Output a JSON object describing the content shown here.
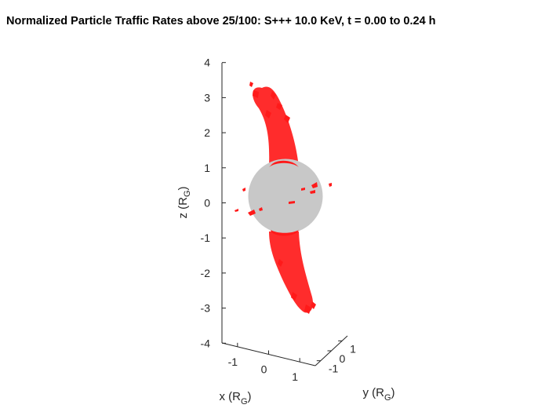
{
  "chart_data": {
    "type": "3d-surface",
    "title": "Normalized Particle Traffic Rates above 25/100: S+++ 10.0 KeV, t = 0.00 to 0.24 h",
    "xlabel": {
      "text": "x (R",
      "sub": "G",
      "close": ")"
    },
    "ylabel": {
      "text": "y (R",
      "sub": "G",
      "close": ")"
    },
    "zlabel": {
      "text": "z (R",
      "sub": "G",
      "close": ")"
    },
    "xlim": [
      -1.5,
      1.5
    ],
    "ylim": [
      -1.5,
      1.5
    ],
    "zlim": [
      -4,
      4
    ],
    "x_ticks": [
      -1,
      0,
      1
    ],
    "y_ticks": [
      -1,
      0,
      1
    ],
    "z_ticks": [
      -4,
      -3,
      -2,
      -1,
      0,
      1,
      2,
      3,
      4
    ],
    "x_tick_labels": [
      "-1",
      "0",
      "1"
    ],
    "y_tick_labels": [
      "-1",
      "0",
      "1"
    ],
    "z_tick_labels": [
      "-4",
      "-3",
      "-2",
      "-1",
      "0",
      "1",
      "2",
      "3",
      "4"
    ],
    "sphere": {
      "center": [
        0,
        0,
        0
      ],
      "radius": 1,
      "color": "#c8c8c8"
    },
    "surface_color": "#ff1a1a",
    "threshold": "25/100",
    "species": "S+++",
    "energy": "10.0 KeV",
    "time_range": "0.00 to 0.24 h"
  }
}
